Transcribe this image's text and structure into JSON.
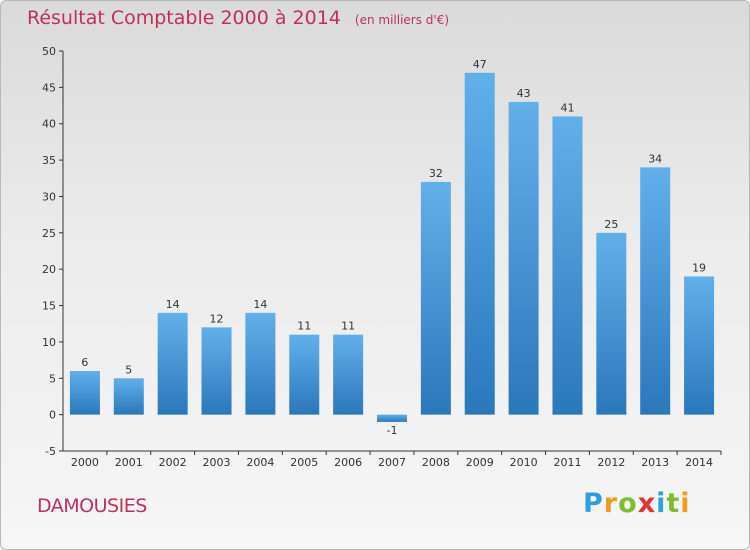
{
  "chart_data": {
    "type": "bar",
    "title": "Résultat Comptable 2000 à 2014",
    "subtitle": "(en milliers d'€)",
    "categories": [
      "2000",
      "2001",
      "2002",
      "2003",
      "2004",
      "2005",
      "2006",
      "2007",
      "2008",
      "2009",
      "2010",
      "2011",
      "2012",
      "2013",
      "2014"
    ],
    "values": [
      6,
      5,
      14,
      12,
      14,
      11,
      11,
      -1,
      32,
      47,
      43,
      41,
      25,
      34,
      19
    ],
    "data_labels": [
      "6",
      "5",
      "14",
      "12",
      "14",
      "11",
      "11",
      "-1",
      "32",
      "47",
      "43",
      "41",
      "25",
      "34",
      "19"
    ],
    "ylim": [
      -5,
      50
    ],
    "yticks": [
      -5,
      0,
      5,
      10,
      15,
      20,
      25,
      30,
      35,
      40,
      45,
      50
    ],
    "grid": false,
    "bar_color": "#4f9fdf"
  },
  "location": "DAMOUSIES",
  "brand": {
    "letters": [
      "P",
      "r",
      "o",
      "x",
      "i",
      "t",
      "i"
    ],
    "colors": [
      "#2f9fdc",
      "#f29a1a",
      "#7bbf2a",
      "#e3342f",
      "#2f9fdc",
      "#7bbf2a",
      "#f29a1a"
    ]
  },
  "colors": {
    "title": "#c0305a",
    "axis": "#333333"
  }
}
